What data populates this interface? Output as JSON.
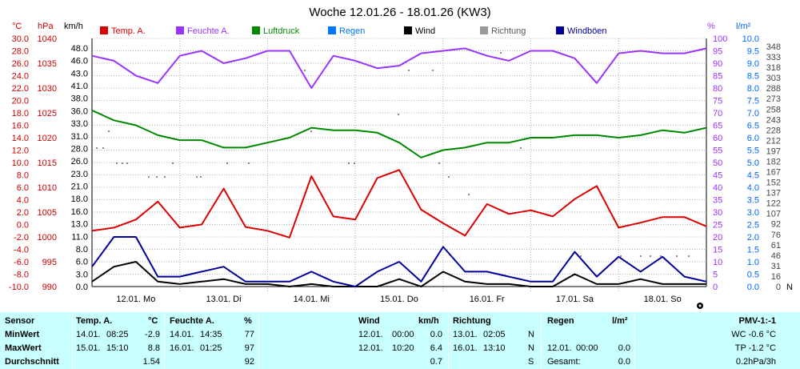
{
  "chart_data": {
    "type": "line",
    "title": "Woche 12.01.26 - 18.01.26 (KW3)",
    "axes": {
      "temp": {
        "unit": "°C",
        "min": -10,
        "max": 30,
        "step": 2,
        "ticks": [
          "30.0",
          "28.0",
          "26.0",
          "24.0",
          "22.0",
          "20.0",
          "18.0",
          "16.0",
          "14.0",
          "12.0",
          "10.0",
          "8.0",
          "6.0",
          "4.0",
          "2.0",
          "0.0",
          "-2.0",
          "-4.0",
          "-6.0",
          "-8.0",
          "-10.0"
        ]
      },
      "pressure": {
        "unit": "hPa",
        "min": 990,
        "max": 1040,
        "step": 5,
        "ticks": [
          "1040",
          "1035",
          "1030",
          "1025",
          "1020",
          "1015",
          "1010",
          "1005",
          "1000",
          "995",
          "990"
        ]
      },
      "wind": {
        "unit": "km/h",
        "ticks": [
          "48.0",
          "46.0",
          "43.0",
          "41.0",
          "38.0",
          "36.0",
          "33.0",
          "31.0",
          "28.0",
          "26.0",
          "23.0",
          "21.0",
          "18.0",
          "16.0",
          "13.0",
          "11.0",
          "8.0",
          "6.0",
          "3.0",
          "0.0"
        ]
      },
      "humidity": {
        "unit": "%",
        "min": 0,
        "max": 100,
        "step": 5,
        "ticks": [
          "100",
          "95",
          "90",
          "85",
          "80",
          "75",
          "70",
          "65",
          "60",
          "55",
          "50",
          "45",
          "40",
          "35",
          "30",
          "25",
          "20",
          "15",
          "10",
          "5",
          "0"
        ]
      },
      "rain": {
        "unit": "l/m²",
        "min": 0,
        "max": 10,
        "step": 0.5,
        "ticks": [
          "10.0",
          "9.5",
          "9.0",
          "8.5",
          "8.0",
          "7.5",
          "7.0",
          "6.5",
          "6.0",
          "5.5",
          "5.0",
          "4.5",
          "4.0",
          "3.5",
          "3.0",
          "2.5",
          "2.0",
          "1.5",
          "1.0",
          "0.5",
          "0.0"
        ]
      },
      "direction": {
        "unit": "°",
        "ticks": [
          "348",
          "333",
          "318",
          "303",
          "288",
          "273",
          "258",
          "243",
          "228",
          "212",
          "197",
          "182",
          "167",
          "152",
          "137",
          "122",
          "107",
          "92",
          "76",
          "61",
          "46",
          "31",
          "16",
          "0"
        ]
      },
      "x_ticks": [
        "12.01. Mo",
        "13.01. Di",
        "14.01. Mi",
        "15.01. Do",
        "16.01. Fr",
        "17.01. Sa",
        "18.01. So"
      ],
      "dir_letter": "N"
    },
    "legend": [
      {
        "name": "Temp. A.",
        "color": "#dd0000"
      },
      {
        "name": "Feuchte A.",
        "color": "#9933ff"
      },
      {
        "name": "Luftdruck",
        "color": "#008800"
      },
      {
        "name": "Regen",
        "color": "#0077ff"
      },
      {
        "name": "Wind",
        "color": "#000000"
      },
      {
        "name": "Richtung",
        "color": "#999999"
      },
      {
        "name": "Windböen",
        "color": "#000099"
      }
    ],
    "series": [
      {
        "name": "Temp. A.",
        "unit": "°C",
        "color": "#dd0000",
        "x": [
          0,
          0.25,
          0.5,
          0.75,
          1,
          1.25,
          1.5,
          1.75,
          2,
          2.25,
          2.5,
          2.75,
          3,
          3.25,
          3.5,
          3.75,
          4,
          4.25,
          4.5,
          4.75,
          5,
          5.25,
          5.5,
          5.75,
          6,
          6.25,
          6.5,
          6.75,
          7
        ],
        "values": [
          -1,
          -0.5,
          0.8,
          3.7,
          -0.5,
          0,
          5.8,
          -0.4,
          -1,
          -2.1,
          7.8,
          1.3,
          0.8,
          7.5,
          8.8,
          2.4,
          0.2,
          -1.8,
          3.3,
          1.7,
          2.3,
          1.3,
          4.1,
          6.2,
          -0.5,
          0.3,
          1.2,
          1.2,
          -0.3
        ]
      },
      {
        "name": "Feuchte A.",
        "unit": "%",
        "color": "#9933ff",
        "x": [
          0,
          0.25,
          0.5,
          0.75,
          1,
          1.25,
          1.5,
          1.75,
          2,
          2.25,
          2.5,
          2.75,
          3,
          3.25,
          3.5,
          3.75,
          4,
          4.25,
          4.5,
          4.75,
          5,
          5.25,
          5.5,
          5.75,
          6,
          6.25,
          6.5,
          6.75,
          7
        ],
        "values": [
          93,
          91,
          85,
          82,
          93,
          95,
          90,
          92,
          95,
          95,
          80,
          93,
          91,
          88,
          89,
          94,
          95,
          96,
          93,
          91,
          95,
          95,
          92,
          82,
          94,
          95,
          94,
          94,
          96
        ]
      },
      {
        "name": "Luftdruck",
        "unit": "hPa",
        "color": "#008800",
        "x": [
          0,
          0.25,
          0.5,
          0.75,
          1,
          1.25,
          1.5,
          1.75,
          2,
          2.25,
          2.5,
          2.75,
          3,
          3.25,
          3.5,
          3.75,
          4,
          4.25,
          4.5,
          4.75,
          5,
          5.25,
          5.5,
          5.75,
          6,
          6.25,
          6.5,
          6.75,
          7
        ],
        "values": [
          1025.5,
          1023.5,
          1022.5,
          1020.5,
          1019.5,
          1019.5,
          1018,
          1018,
          1019,
          1020,
          1022,
          1021.5,
          1021.5,
          1021,
          1019,
          1016,
          1017.5,
          1018,
          1019,
          1019,
          1020,
          1020,
          1020.5,
          1020.5,
          1020,
          1020.5,
          1021.5,
          1021,
          1022
        ]
      },
      {
        "name": "Wind",
        "unit": "km/h",
        "color": "#000000",
        "x": [
          0,
          0.25,
          0.5,
          0.75,
          1,
          1.25,
          1.5,
          1.75,
          2,
          2.25,
          2.5,
          2.75,
          3,
          3.25,
          3.5,
          3.75,
          4,
          4.25,
          4.5,
          4.75,
          5,
          5.25,
          5.5,
          5.75,
          6,
          6.25,
          6.5,
          6.75,
          7
        ],
        "values": [
          1,
          4,
          5,
          1,
          0.5,
          1,
          1.5,
          0.5,
          0.5,
          0,
          0.5,
          0,
          0,
          0,
          1.5,
          0,
          3,
          1,
          0.5,
          0.5,
          0,
          0,
          2.5,
          0.5,
          0.5,
          1.5,
          0.5,
          0.5,
          0.5
        ]
      },
      {
        "name": "Windböen",
        "unit": "km/h",
        "color": "#000099",
        "x": [
          0,
          0.25,
          0.5,
          0.75,
          1,
          1.25,
          1.5,
          1.75,
          2,
          2.25,
          2.5,
          2.75,
          3,
          3.25,
          3.5,
          3.75,
          4,
          4.25,
          4.5,
          4.75,
          5,
          5.25,
          5.5,
          5.75,
          6,
          6.25,
          6.5,
          6.75,
          7
        ],
        "values": [
          4,
          10,
          10,
          2,
          2,
          3,
          4,
          1,
          1,
          1,
          3,
          1,
          0,
          3,
          5,
          1,
          8,
          3,
          3,
          2,
          1,
          1,
          7,
          2,
          6,
          3,
          6,
          2,
          1
        ]
      }
    ]
  },
  "panel": {
    "headers": {
      "sensor": "Sensor",
      "temp": "Temp. A.",
      "temp_unit": "°C",
      "hum": "Feuchte A.",
      "hum_unit": "%",
      "wind": "Wind",
      "wind_unit": "km/h",
      "dir": "Richtung",
      "rain": "Regen",
      "rain_unit": "l/m²",
      "pmv": "PMV-1:-1"
    },
    "labels": {
      "min": "MinWert",
      "max": "MaxWert",
      "avg": "Durchschnitt"
    },
    "temp": {
      "min_date": "14.01.",
      "min_time": "08:25",
      "min_val": "-2.9",
      "max_date": "15.01.",
      "max_time": "15:10",
      "max_val": "8.8",
      "avg_val": "1.54"
    },
    "hum": {
      "min_date": "14.01.",
      "min_time": "14:35",
      "min_val": "77",
      "max_date": "16.01.",
      "max_time": "01:25",
      "max_val": "97",
      "avg_val": "92"
    },
    "wind": {
      "min_date": "12.01.",
      "min_time": "00:00",
      "min_val": "0.0",
      "max_date": "12.01.",
      "max_time": "10:20",
      "max_val": "6.4",
      "avg_val": "0.7"
    },
    "dir": {
      "min_date": "13.01.",
      "min_time": "02:05",
      "min_val": "N",
      "max_date": "16.01.",
      "max_time": "13:10",
      "max_val": "N",
      "avg_val": "S"
    },
    "rain": {
      "max_date": "12.01.",
      "max_time": "00:00",
      "max_val": "0.0",
      "total_label": "Gesamt:",
      "total_val": "0.0"
    },
    "pmv": {
      "wc": "WC -0.6 °C",
      "tp": "TP -1.2 °C",
      "trend": "0.2hPa/3h"
    }
  }
}
